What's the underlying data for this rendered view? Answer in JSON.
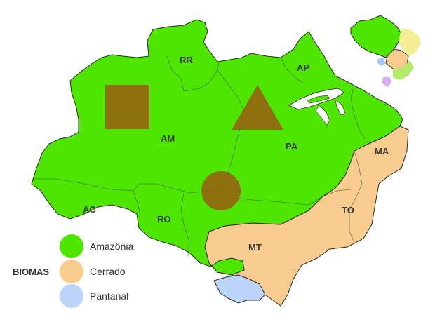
{
  "colors": {
    "amazonia": "#4ee600",
    "cerrado": "#f8cc8f",
    "pantanal": "#bcd4f8",
    "marker": "#9b5a12",
    "mini_yellow": "#f4ef96",
    "mini_lightgreen": "#b5ea6a",
    "mini_purple": "#d8b0f0",
    "mini_blue": "#aac8f2"
  },
  "states": {
    "rr": "RR",
    "ap": "AP",
    "am": "AM",
    "pa": "PA",
    "ma": "MA",
    "ac": "AC",
    "ro": "RO",
    "to": "TO",
    "mt": "MT"
  },
  "legend": {
    "title": "BIOMAS",
    "items": [
      {
        "label": "Amazônia",
        "color_key": "amazonia"
      },
      {
        "label": "Cerrado",
        "color_key": "cerrado"
      },
      {
        "label": "Pantanal",
        "color_key": "pantanal"
      }
    ]
  },
  "markers": [
    {
      "shape": "square-marker",
      "state": "AM"
    },
    {
      "shape": "triangle-marker",
      "state": "PA"
    },
    {
      "shape": "circle-marker",
      "state": "MT"
    }
  ]
}
